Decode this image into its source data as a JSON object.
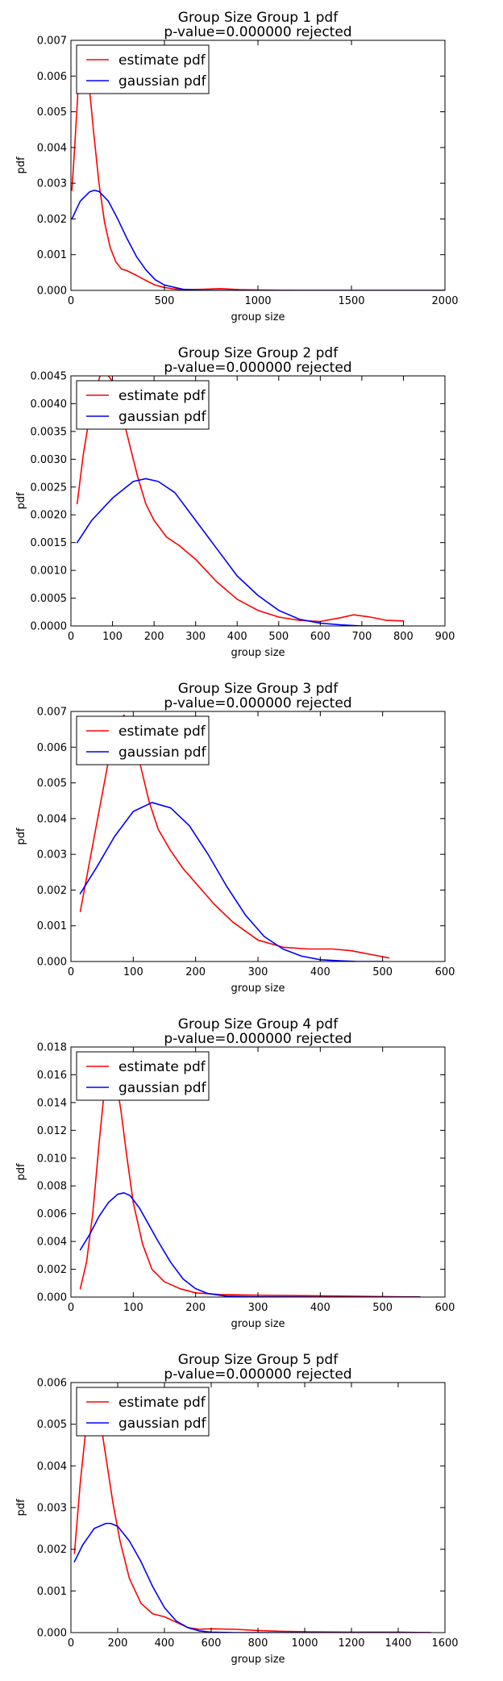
{
  "colors": {
    "estimate": "#ff0000",
    "gaussian": "#0000ff"
  },
  "chart_data": [
    {
      "type": "line",
      "title": "Group Size Group 1 pdf",
      "subtitle": "p-value=0.000000  rejected",
      "xlabel": "group size",
      "ylabel": "pdf",
      "xlim": [
        0,
        2000
      ],
      "ylim": [
        0,
        0.007
      ],
      "xticks": [
        0,
        500,
        1000,
        1500,
        2000
      ],
      "yticks": [
        0.0,
        0.001,
        0.002,
        0.003,
        0.004,
        0.005,
        0.006,
        0.007
      ],
      "xtick_labels": [
        "0",
        "500",
        "1000",
        "1500",
        "2000"
      ],
      "ytick_labels": [
        "0.000",
        "0.001",
        "0.002",
        "0.003",
        "0.004",
        "0.005",
        "0.006",
        "0.007"
      ],
      "legend": {
        "position": "top-left",
        "entries": [
          "estimate pdf",
          "gaussian pdf"
        ]
      },
      "series": [
        {
          "name": "estimate pdf",
          "color": "#ff0000",
          "x": [
            5,
            20,
            40,
            60,
            80,
            100,
            120,
            150,
            180,
            210,
            240,
            270,
            300,
            350,
            400,
            450,
            500,
            550,
            600,
            700,
            800,
            900,
            1000,
            1200,
            1500,
            2000
          ],
          "y": [
            0.0028,
            0.004,
            0.0058,
            0.0066,
            0.0064,
            0.0056,
            0.0045,
            0.003,
            0.0019,
            0.0012,
            0.0008,
            0.0006,
            0.00055,
            0.00042,
            0.00028,
            0.00015,
            8e-05,
            4e-05,
            2e-05,
            3e-05,
            5e-05,
            2e-05,
            1e-05,
            0.0,
            0.0,
            0.0
          ]
        },
        {
          "name": "gaussian pdf",
          "color": "#0000ff",
          "x": [
            5,
            50,
            100,
            125,
            150,
            200,
            250,
            300,
            350,
            400,
            450,
            500,
            600,
            700,
            800,
            1000,
            1500,
            2000
          ],
          "y": [
            0.002,
            0.0025,
            0.00276,
            0.0028,
            0.00277,
            0.0025,
            0.002,
            0.00145,
            0.00095,
            0.00058,
            0.0003,
            0.00015,
            3e-05,
            0.0,
            0.0,
            0.0,
            0.0,
            0.0
          ]
        }
      ]
    },
    {
      "type": "line",
      "title": "Group Size Group 2 pdf",
      "subtitle": "p-value=0.000000  rejected",
      "xlabel": "group size",
      "ylabel": "pdf",
      "xlim": [
        0,
        900
      ],
      "ylim": [
        0,
        0.0045
      ],
      "xticks": [
        0,
        100,
        200,
        300,
        400,
        500,
        600,
        700,
        800,
        900
      ],
      "yticks": [
        0.0,
        0.0005,
        0.001,
        0.0015,
        0.002,
        0.0025,
        0.003,
        0.0035,
        0.004,
        0.0045
      ],
      "xtick_labels": [
        "0",
        "100",
        "200",
        "300",
        "400",
        "500",
        "600",
        "700",
        "800",
        "900"
      ],
      "ytick_labels": [
        "0.0000",
        "0.0005",
        "0.0010",
        "0.0015",
        "0.0020",
        "0.0025",
        "0.0030",
        "0.0035",
        "0.0040",
        "0.0045"
      ],
      "legend": {
        "position": "top-left",
        "entries": [
          "estimate pdf",
          "gaussian pdf"
        ]
      },
      "series": [
        {
          "name": "estimate pdf",
          "color": "#ff0000",
          "x": [
            15,
            30,
            50,
            70,
            85,
            100,
            120,
            140,
            160,
            180,
            200,
            230,
            260,
            300,
            350,
            400,
            450,
            500,
            550,
            600,
            650,
            680,
            720,
            760,
            800
          ],
          "y": [
            0.0022,
            0.0031,
            0.004,
            0.0045,
            0.00455,
            0.0044,
            0.0039,
            0.0033,
            0.0027,
            0.0022,
            0.0019,
            0.0016,
            0.00145,
            0.0012,
            0.0008,
            0.00048,
            0.00028,
            0.00016,
            0.0001,
            8e-05,
            0.00015,
            0.0002,
            0.00016,
            0.0001,
            9e-05
          ]
        },
        {
          "name": "gaussian pdf",
          "color": "#0000ff",
          "x": [
            15,
            50,
            100,
            150,
            180,
            210,
            250,
            300,
            350,
            400,
            450,
            500,
            550,
            600,
            650,
            700,
            800
          ],
          "y": [
            0.0015,
            0.0019,
            0.0023,
            0.0026,
            0.00265,
            0.0026,
            0.0024,
            0.0019,
            0.0014,
            0.0009,
            0.00055,
            0.00028,
            0.00012,
            5e-05,
            2e-05,
            0.0,
            0.0
          ]
        }
      ]
    },
    {
      "type": "line",
      "title": "Group Size Group 3 pdf",
      "subtitle": "p-value=0.000000  rejected",
      "xlabel": "group size",
      "ylabel": "pdf",
      "xlim": [
        0,
        600
      ],
      "ylim": [
        0,
        0.007
      ],
      "xticks": [
        0,
        100,
        200,
        300,
        400,
        500,
        600
      ],
      "yticks": [
        0.0,
        0.001,
        0.002,
        0.003,
        0.004,
        0.005,
        0.006,
        0.007
      ],
      "xtick_labels": [
        "0",
        "100",
        "200",
        "300",
        "400",
        "500",
        "600"
      ],
      "ytick_labels": [
        "0.000",
        "0.001",
        "0.002",
        "0.003",
        "0.004",
        "0.005",
        "0.006",
        "0.007"
      ],
      "legend": {
        "position": "top-left",
        "entries": [
          "estimate pdf",
          "gaussian pdf"
        ]
      },
      "series": [
        {
          "name": "estimate pdf",
          "color": "#ff0000",
          "x": [
            15,
            30,
            45,
            60,
            75,
            85,
            95,
            110,
            125,
            140,
            160,
            180,
            200,
            230,
            260,
            300,
            340,
            380,
            420,
            450,
            480,
            510
          ],
          "y": [
            0.0014,
            0.0028,
            0.0042,
            0.0056,
            0.0066,
            0.0069,
            0.0066,
            0.0056,
            0.0045,
            0.0037,
            0.0031,
            0.0026,
            0.0022,
            0.0016,
            0.0011,
            0.0006,
            0.0004,
            0.00035,
            0.00035,
            0.0003,
            0.0002,
            0.0001
          ]
        },
        {
          "name": "gaussian pdf",
          "color": "#0000ff",
          "x": [
            15,
            40,
            70,
            100,
            130,
            160,
            190,
            220,
            250,
            280,
            310,
            340,
            370,
            400,
            430,
            460,
            500
          ],
          "y": [
            0.0019,
            0.0026,
            0.0035,
            0.0042,
            0.00445,
            0.0043,
            0.0038,
            0.003,
            0.0021,
            0.0013,
            0.0007,
            0.00035,
            0.00015,
            5e-05,
            2e-05,
            0.0,
            0.0
          ]
        }
      ]
    },
    {
      "type": "line",
      "title": "Group Size Group 4 pdf",
      "subtitle": "p-value=0.000000  rejected",
      "xlabel": "group size",
      "ylabel": "pdf",
      "xlim": [
        0,
        600
      ],
      "ylim": [
        0,
        0.018
      ],
      "xticks": [
        0,
        100,
        200,
        300,
        400,
        500,
        600
      ],
      "yticks": [
        0.0,
        0.002,
        0.004,
        0.006,
        0.008,
        0.01,
        0.012,
        0.014,
        0.016,
        0.018
      ],
      "xtick_labels": [
        "0",
        "100",
        "200",
        "300",
        "400",
        "500",
        "600"
      ],
      "ytick_labels": [
        "0.000",
        "0.002",
        "0.004",
        "0.006",
        "0.008",
        "0.010",
        "0.012",
        "0.014",
        "0.016",
        "0.018"
      ],
      "legend": {
        "position": "top-left",
        "entries": [
          "estimate pdf",
          "gaussian pdf"
        ]
      },
      "series": [
        {
          "name": "estimate pdf",
          "color": "#ff0000",
          "x": [
            15,
            25,
            35,
            45,
            55,
            62,
            70,
            80,
            90,
            100,
            115,
            130,
            150,
            175,
            200,
            240,
            280,
            320,
            380,
            450,
            500,
            560
          ],
          "y": [
            0.0006,
            0.0025,
            0.006,
            0.011,
            0.0155,
            0.0168,
            0.0162,
            0.0135,
            0.01,
            0.0068,
            0.0038,
            0.002,
            0.0011,
            0.0006,
            0.0003,
            0.00018,
            0.00015,
            0.00012,
            0.0001,
            6e-05,
            3e-05,
            1e-05
          ]
        },
        {
          "name": "gaussian pdf",
          "color": "#0000ff",
          "x": [
            15,
            30,
            45,
            60,
            75,
            85,
            95,
            110,
            125,
            140,
            160,
            180,
            200,
            220,
            250,
            300,
            400,
            560
          ],
          "y": [
            0.0034,
            0.0045,
            0.0058,
            0.0068,
            0.0074,
            0.0075,
            0.0073,
            0.0064,
            0.0052,
            0.004,
            0.0025,
            0.0013,
            0.0006,
            0.00025,
            6e-05,
            1e-05,
            0.0,
            0.0
          ]
        }
      ]
    },
    {
      "type": "line",
      "title": "Group Size Group 5 pdf",
      "subtitle": "p-value=0.000000  rejected",
      "xlabel": "group size",
      "ylabel": "pdf",
      "xlim": [
        0,
        1600
      ],
      "ylim": [
        0,
        0.006
      ],
      "xticks": [
        0,
        200,
        400,
        600,
        800,
        1000,
        1200,
        1400,
        1600
      ],
      "yticks": [
        0.0,
        0.001,
        0.002,
        0.003,
        0.004,
        0.005,
        0.006
      ],
      "xtick_labels": [
        "0",
        "200",
        "400",
        "600",
        "800",
        "1000",
        "1200",
        "1400",
        "1600"
      ],
      "ytick_labels": [
        "0.000",
        "0.001",
        "0.002",
        "0.003",
        "0.004",
        "0.005",
        "0.006"
      ],
      "legend": {
        "position": "top-left",
        "entries": [
          "estimate pdf",
          "gaussian pdf"
        ]
      },
      "series": [
        {
          "name": "estimate pdf",
          "color": "#ff0000",
          "x": [
            15,
            40,
            70,
            100,
            120,
            150,
            180,
            210,
            250,
            300,
            350,
            400,
            450,
            500,
            550,
            600,
            700,
            800,
            900,
            1000,
            1200,
            1400,
            1540
          ],
          "y": [
            0.0019,
            0.0036,
            0.0052,
            0.0057,
            0.0053,
            0.0042,
            0.0031,
            0.0022,
            0.0013,
            0.0007,
            0.00045,
            0.00038,
            0.00025,
            0.00012,
            8e-05,
            9e-05,
            8e-05,
            5e-05,
            3e-05,
            2e-05,
            1e-05,
            1e-05,
            0.0
          ]
        },
        {
          "name": "gaussian pdf",
          "color": "#0000ff",
          "x": [
            15,
            50,
            100,
            150,
            170,
            200,
            250,
            300,
            350,
            400,
            450,
            500,
            550,
            600,
            700,
            800,
            1000,
            1540
          ],
          "y": [
            0.0017,
            0.0021,
            0.0025,
            0.00262,
            0.00262,
            0.00255,
            0.0022,
            0.0017,
            0.0011,
            0.0006,
            0.00028,
            0.00012,
            4e-05,
            1e-05,
            0.0,
            0.0,
            0.0,
            0.0
          ]
        }
      ]
    }
  ]
}
